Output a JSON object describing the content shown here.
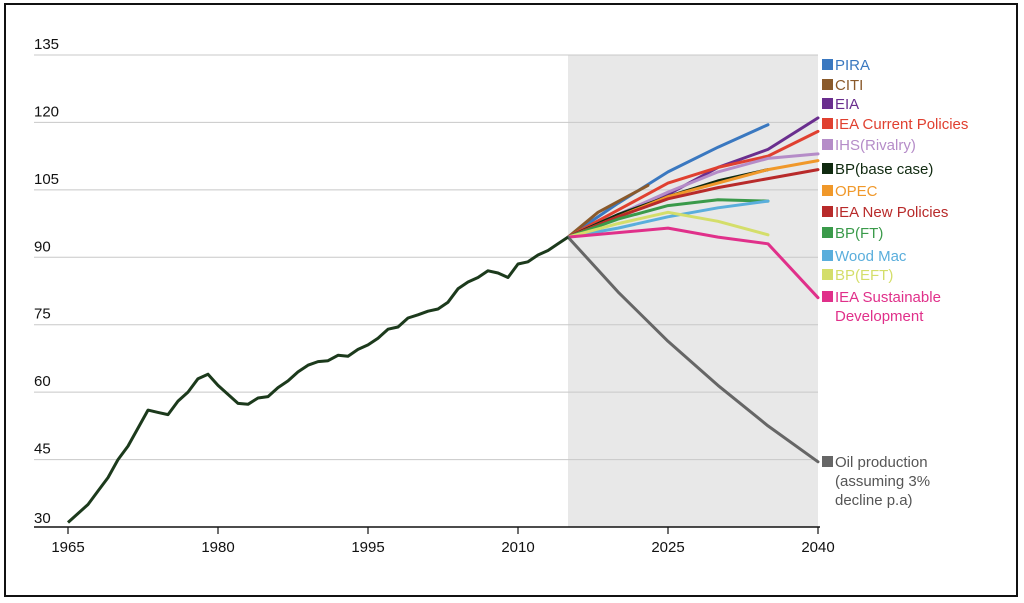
{
  "chart_data": {
    "type": "line",
    "title": "",
    "xlabel": "",
    "ylabel": "",
    "xlim": [
      1965,
      2040
    ],
    "ylim": [
      30,
      135
    ],
    "x_ticks": [
      "1965",
      "1980",
      "1995",
      "2010",
      "2025",
      "2040"
    ],
    "y_ticks": [
      "30",
      "45",
      "60",
      "75",
      "90",
      "105",
      "120",
      "135"
    ],
    "grid": "horizontal",
    "shaded_region": [
      2015,
      2040
    ],
    "legend_placement": "right",
    "historical": {
      "color": "#1c3a1c",
      "points": [
        [
          1965,
          31
        ],
        [
          1967,
          35
        ],
        [
          1968,
          38
        ],
        [
          1969,
          41
        ],
        [
          1970,
          45
        ],
        [
          1971,
          48
        ],
        [
          1972,
          52
        ],
        [
          1973,
          56
        ],
        [
          1974,
          55.5
        ],
        [
          1975,
          55
        ],
        [
          1976,
          58
        ],
        [
          1977,
          60
        ],
        [
          1978,
          63
        ],
        [
          1979,
          64
        ],
        [
          1980,
          61.5
        ],
        [
          1981,
          59.5
        ],
        [
          1982,
          57.5
        ],
        [
          1983,
          57.3
        ],
        [
          1984,
          58.7
        ],
        [
          1985,
          59
        ],
        [
          1986,
          61
        ],
        [
          1987,
          62.5
        ],
        [
          1988,
          64.5
        ],
        [
          1989,
          66
        ],
        [
          1990,
          66.8
        ],
        [
          1991,
          67
        ],
        [
          1992,
          68.2
        ],
        [
          1993,
          68
        ],
        [
          1994,
          69.5
        ],
        [
          1995,
          70.5
        ],
        [
          1996,
          72
        ],
        [
          1997,
          74
        ],
        [
          1998,
          74.5
        ],
        [
          1999,
          76.5
        ],
        [
          2000,
          77.2
        ],
        [
          2001,
          78
        ],
        [
          2002,
          78.5
        ],
        [
          2003,
          80
        ],
        [
          2004,
          83
        ],
        [
          2005,
          84.5
        ],
        [
          2006,
          85.5
        ],
        [
          2007,
          87
        ],
        [
          2008,
          86.5
        ],
        [
          2009,
          85.5
        ],
        [
          2010,
          88.5
        ],
        [
          2011,
          89
        ],
        [
          2012,
          90.5
        ],
        [
          2013,
          91.5
        ],
        [
          2014,
          93
        ],
        [
          2015,
          94.5
        ]
      ]
    },
    "series": [
      {
        "name": "PIRA",
        "color": "#3a78c0",
        "points": [
          [
            2015,
            94.5
          ],
          [
            2020,
            102
          ],
          [
            2025,
            109
          ],
          [
            2030,
            114.5
          ],
          [
            2035,
            119.5
          ]
        ]
      },
      {
        "name": "CITI",
        "color": "#8a5a2b",
        "points": [
          [
            2015,
            94.5
          ],
          [
            2018,
            100
          ],
          [
            2023,
            106
          ]
        ]
      },
      {
        "name": "EIA",
        "color": "#6a2e8e",
        "points": [
          [
            2015,
            94.5
          ],
          [
            2020,
            99
          ],
          [
            2025,
            104
          ],
          [
            2030,
            110
          ],
          [
            2035,
            114
          ],
          [
            2040,
            121
          ]
        ]
      },
      {
        "name": "IEA Current Policies",
        "color": "#e04030",
        "points": [
          [
            2015,
            94.5
          ],
          [
            2020,
            100.5
          ],
          [
            2025,
            106.5
          ],
          [
            2030,
            110
          ],
          [
            2035,
            112.5
          ],
          [
            2040,
            118
          ]
        ]
      },
      {
        "name": "IHS(Rivalry)",
        "color": "#b58cc8",
        "points": [
          [
            2015,
            94.5
          ],
          [
            2020,
            99.5
          ],
          [
            2025,
            104.5
          ],
          [
            2030,
            109
          ],
          [
            2035,
            112
          ],
          [
            2040,
            113
          ]
        ]
      },
      {
        "name": "BP(base case)",
        "color": "#102a10",
        "points": [
          [
            2015,
            94.5
          ],
          [
            2020,
            99.5
          ],
          [
            2025,
            103.5
          ],
          [
            2030,
            107
          ],
          [
            2035,
            109.5
          ]
        ]
      },
      {
        "name": "OPEC",
        "color": "#f0982a",
        "points": [
          [
            2015,
            94.5
          ],
          [
            2020,
            99
          ],
          [
            2025,
            103.5
          ],
          [
            2030,
            106.5
          ],
          [
            2035,
            109.5
          ],
          [
            2040,
            111.5
          ]
        ]
      },
      {
        "name": "IEA New Policies",
        "color": "#b82a2a",
        "points": [
          [
            2015,
            94.5
          ],
          [
            2020,
            99
          ],
          [
            2025,
            103
          ],
          [
            2030,
            105.5
          ],
          [
            2035,
            107.5
          ],
          [
            2040,
            109.5
          ]
        ]
      },
      {
        "name": "BP(FT)",
        "color": "#3a9a4a",
        "points": [
          [
            2015,
            94.5
          ],
          [
            2020,
            98.5
          ],
          [
            2025,
            101.5
          ],
          [
            2030,
            102.8
          ],
          [
            2035,
            102.5
          ]
        ]
      },
      {
        "name": "Wood Mac",
        "color": "#5aaedc",
        "points": [
          [
            2015,
            94.5
          ],
          [
            2020,
            96.5
          ],
          [
            2025,
            99
          ],
          [
            2030,
            101
          ],
          [
            2035,
            102.5
          ]
        ]
      },
      {
        "name": "BP(EFT)",
        "color": "#d4de6a",
        "points": [
          [
            2015,
            94.5
          ],
          [
            2020,
            97.5
          ],
          [
            2025,
            100
          ],
          [
            2030,
            98
          ],
          [
            2035,
            95
          ]
        ]
      },
      {
        "name": "IEA Sustainable Development",
        "color": "#e0308a",
        "points": [
          [
            2015,
            94.5
          ],
          [
            2020,
            95.5
          ],
          [
            2025,
            96.5
          ],
          [
            2030,
            94.5
          ],
          [
            2035,
            93
          ],
          [
            2040,
            81
          ]
        ]
      },
      {
        "name": "Oil production (assuming 3% decline p.a)",
        "color": "#666666",
        "points": [
          [
            2015,
            94.5
          ],
          [
            2020,
            82.3
          ],
          [
            2025,
            71.3
          ],
          [
            2030,
            61.5
          ],
          [
            2035,
            52.5
          ],
          [
            2040,
            44.5
          ]
        ]
      }
    ]
  },
  "legend": [
    {
      "label": "PIRA",
      "color": "#3a78c0"
    },
    {
      "label": "CITI",
      "color": "#8a5a2b"
    },
    {
      "label": "EIA",
      "color": "#6a2e8e"
    },
    {
      "label": "IEA Current Policies",
      "color": "#e04030"
    },
    {
      "label": "IHS(Rivalry)",
      "color": "#b58cc8"
    },
    {
      "label": "BP(base case)",
      "color": "#102a10"
    },
    {
      "label": "OPEC",
      "color": "#f0982a"
    },
    {
      "label": "IEA New Policies",
      "color": "#b82a2a"
    },
    {
      "label": "BP(FT)",
      "color": "#3a9a4a"
    },
    {
      "label": "Wood Mac",
      "color": "#5aaedc"
    },
    {
      "label": "BP(EFT)",
      "color": "#d4de6a"
    },
    {
      "label": "IEA Sustainable Development",
      "lines": [
        "IEA Sustainable",
        "Development"
      ],
      "color": "#e0308a"
    },
    {
      "label": "Oil production (assuming 3% decline p.a)",
      "lines": [
        "Oil production",
        "(assuming 3%",
        "decline p.a)"
      ],
      "color": "#666666",
      "text_color": "#555555"
    }
  ]
}
